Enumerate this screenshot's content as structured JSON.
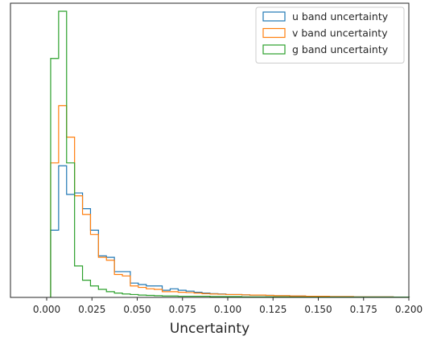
{
  "chart_data": {
    "type": "histogram",
    "xlabel": "Uncertainty",
    "ylabel": "",
    "xlim": [
      -0.02,
      0.2
    ],
    "ylim": [
      0,
      1.0
    ],
    "y_ticks_shown": false,
    "grid": false,
    "legend_placement": "top-right",
    "x_ticks": [
      "0.000",
      "0.025",
      "0.050",
      "0.075",
      "0.100",
      "0.125",
      "0.150",
      "0.175",
      "0.200"
    ],
    "x_tick_values": [
      0,
      0.025,
      0.05,
      0.075,
      0.1,
      0.125,
      0.15,
      0.175,
      0.2
    ],
    "bin_width": 0.0044,
    "series": [
      {
        "name": "u band uncertainty",
        "color": "#1f77b4",
        "bin_start": 0.0022,
        "counts": [
          0.235,
          0.46,
          0.36,
          0.365,
          0.31,
          0.235,
          0.145,
          0.14,
          0.09,
          0.09,
          0.05,
          0.045,
          0.04,
          0.04,
          0.025,
          0.03,
          0.025,
          0.022,
          0.018,
          0.015,
          0.013,
          0.012,
          0.01,
          0.01,
          0.009,
          0.008,
          0.008,
          0.007,
          0.006,
          0.006,
          0.005,
          0.005,
          0.004,
          0.004,
          0.004,
          0.003,
          0.003,
          0.003,
          0.002,
          0.002,
          0.002,
          0.002,
          0.002,
          0.001,
          0.001
        ]
      },
      {
        "name": "v band uncertainty",
        "color": "#ff7f0e",
        "bin_start": 0.0022,
        "counts": [
          0.47,
          0.67,
          0.56,
          0.355,
          0.29,
          0.22,
          0.14,
          0.13,
          0.08,
          0.075,
          0.04,
          0.035,
          0.03,
          0.028,
          0.02,
          0.02,
          0.018,
          0.017,
          0.015,
          0.013,
          0.012,
          0.011,
          0.01,
          0.01,
          0.009,
          0.008,
          0.008,
          0.007,
          0.006,
          0.006,
          0.005,
          0.005,
          0.004,
          0.004,
          0.004,
          0.003,
          0.003,
          0.003,
          0.002,
          0.002,
          0.002,
          0.002,
          0.002,
          0.001,
          0.001
        ]
      },
      {
        "name": "g band uncertainty",
        "color": "#2ca02c",
        "bin_start": 0.0022,
        "counts": [
          0.835,
          1.0,
          0.47,
          0.11,
          0.06,
          0.04,
          0.028,
          0.02,
          0.015,
          0.012,
          0.01,
          0.008,
          0.007,
          0.006,
          0.005,
          0.005,
          0.004,
          0.004,
          0.004,
          0.004,
          0.003,
          0.003,
          0.003,
          0.003,
          0.002,
          0.002,
          0.002,
          0.002,
          0.002,
          0.002,
          0.001,
          0.001,
          0.001,
          0.001,
          0.001,
          0.001,
          0.001,
          0.001,
          0.001,
          0.001,
          0.001,
          0.001,
          0.001,
          0.001,
          0.001
        ]
      }
    ]
  }
}
